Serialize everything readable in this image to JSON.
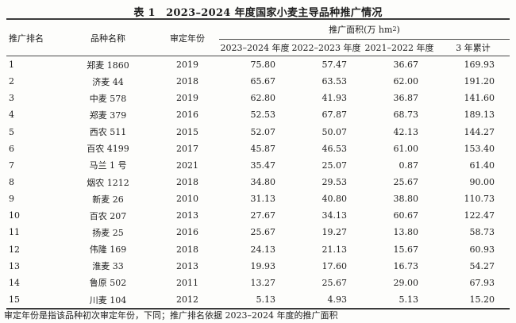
{
  "title": "表 1　2023–2024 年度国家小麦主导品种推广情况",
  "table": {
    "columns": {
      "rank": "推广排名",
      "name": "品种名称",
      "year": "审定年份",
      "area_group_prefix": "推广面积(万 hm",
      "area_group_sup": "2",
      "area_group_suffix": ")",
      "sub": [
        "2023–2024 年度",
        "2022–2023 年度",
        "2021–2022 年度",
        "3 年累计"
      ]
    },
    "rows": [
      {
        "rank": "1",
        "name": "郑麦 1860",
        "year": "2019",
        "a2324": "75.80",
        "a2223": "57.47",
        "a2122": "36.67",
        "total": "169.93"
      },
      {
        "rank": "2",
        "name": "济麦 44",
        "year": "2018",
        "a2324": "65.67",
        "a2223": "63.53",
        "a2122": "62.00",
        "total": "191.20"
      },
      {
        "rank": "3",
        "name": "中麦 578",
        "year": "2019",
        "a2324": "62.80",
        "a2223": "41.93",
        "a2122": "36.87",
        "total": "141.60"
      },
      {
        "rank": "4",
        "name": "郑麦 379",
        "year": "2016",
        "a2324": "52.53",
        "a2223": "67.87",
        "a2122": "68.73",
        "total": "189.13"
      },
      {
        "rank": "5",
        "name": "西农 511",
        "year": "2015",
        "a2324": "52.07",
        "a2223": "50.07",
        "a2122": "42.13",
        "total": "144.27"
      },
      {
        "rank": "6",
        "name": "百农 4199",
        "year": "2017",
        "a2324": "45.87",
        "a2223": "46.53",
        "a2122": "61.00",
        "total": "153.40"
      },
      {
        "rank": "7",
        "name": "马兰 1 号",
        "year": "2021",
        "a2324": "35.47",
        "a2223": "25.07",
        "a2122": "0.87",
        "total": "61.40"
      },
      {
        "rank": "8",
        "name": "烟农 1212",
        "year": "2018",
        "a2324": "34.80",
        "a2223": "29.53",
        "a2122": "25.67",
        "total": "90.00"
      },
      {
        "rank": "9",
        "name": "新麦 26",
        "year": "2010",
        "a2324": "31.13",
        "a2223": "40.80",
        "a2122": "38.80",
        "total": "110.73"
      },
      {
        "rank": "10",
        "name": "百农 207",
        "year": "2013",
        "a2324": "27.67",
        "a2223": "34.13",
        "a2122": "60.67",
        "total": "122.47"
      },
      {
        "rank": "11",
        "name": "扬麦 25",
        "year": "2016",
        "a2324": "25.67",
        "a2223": "19.27",
        "a2122": "13.80",
        "total": "58.73"
      },
      {
        "rank": "12",
        "name": "伟隆 169",
        "year": "2018",
        "a2324": "24.13",
        "a2223": "21.13",
        "a2122": "15.67",
        "total": "60.93"
      },
      {
        "rank": "13",
        "name": "淮麦 33",
        "year": "2013",
        "a2324": "19.93",
        "a2223": "17.60",
        "a2122": "16.73",
        "total": "54.27"
      },
      {
        "rank": "14",
        "name": "鲁原 502",
        "year": "2011",
        "a2324": "13.27",
        "a2223": "25.67",
        "a2122": "29.00",
        "total": "67.93"
      },
      {
        "rank": "15",
        "name": "川麦 104",
        "year": "2012",
        "a2324": "5.13",
        "a2223": "4.93",
        "a2122": "5.13",
        "total": "15.20"
      }
    ]
  },
  "footnote": "审定年份是指该品种初次审定年份，下同；推广排名依据 2023–2024 年度的推广面积",
  "colors": {
    "background": "#fdfdfb",
    "text": "#1e1e1e",
    "rule_thick": "#3c3c3c",
    "rule_thin": "#4a4a4a"
  },
  "chart_data": {
    "type": "table",
    "title": "表 1　2023–2024 年度国家小麦主导品种推广情况",
    "categories": [
      "郑麦 1860",
      "济麦 44",
      "中麦 578",
      "郑麦 379",
      "西农 511",
      "百农 4199",
      "马兰 1 号",
      "烟农 1212",
      "新麦 26",
      "百农 207",
      "扬麦 25",
      "伟隆 169",
      "淮麦 33",
      "鲁原 502",
      "川麦 104"
    ],
    "series": [
      {
        "name": "2023–2024 年度",
        "values": [
          75.8,
          65.67,
          62.8,
          52.53,
          52.07,
          45.87,
          35.47,
          34.8,
          31.13,
          27.67,
          25.67,
          24.13,
          19.93,
          13.27,
          5.13
        ]
      },
      {
        "name": "2022–2023 年度",
        "values": [
          57.47,
          63.53,
          41.93,
          67.87,
          50.07,
          46.53,
          25.07,
          29.53,
          40.8,
          34.13,
          19.27,
          21.13,
          17.6,
          25.67,
          4.93
        ]
      },
      {
        "name": "2021–2022 年度",
        "values": [
          36.67,
          62.0,
          36.87,
          68.73,
          42.13,
          61.0,
          0.87,
          25.67,
          38.8,
          60.67,
          13.8,
          15.67,
          16.73,
          29.0,
          5.13
        ]
      },
      {
        "name": "3 年累计",
        "values": [
          169.93,
          191.2,
          141.6,
          189.13,
          144.27,
          153.4,
          61.4,
          90.0,
          110.73,
          122.47,
          58.73,
          60.93,
          54.27,
          67.93,
          15.2
        ]
      }
    ],
    "unit": "万 hm²"
  }
}
